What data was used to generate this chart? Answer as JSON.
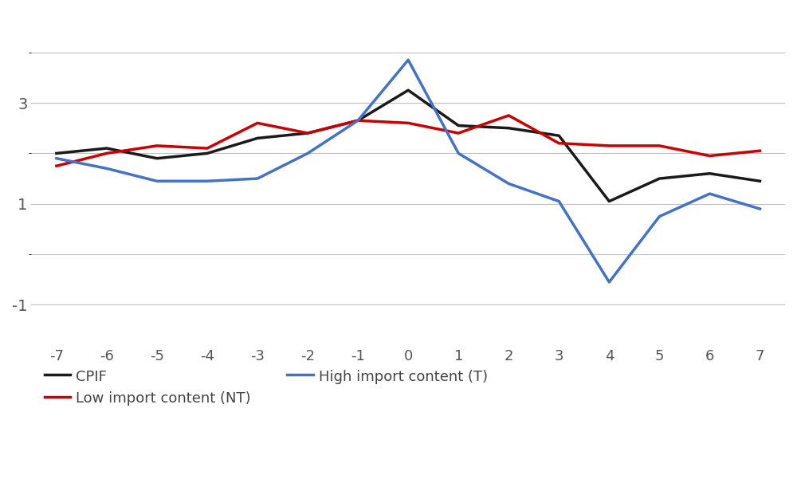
{
  "x": [
    -7,
    -6,
    -5,
    -4,
    -3,
    -2,
    -1,
    0,
    1,
    2,
    3,
    4,
    5,
    6,
    7
  ],
  "cpif": [
    2.0,
    2.1,
    1.9,
    2.0,
    2.3,
    2.4,
    2.65,
    3.25,
    2.55,
    2.5,
    2.35,
    1.05,
    1.5,
    1.6,
    1.45
  ],
  "low_import": [
    1.75,
    2.0,
    2.15,
    2.1,
    2.6,
    2.4,
    2.65,
    2.6,
    2.4,
    2.75,
    2.2,
    2.15,
    2.15,
    1.95,
    2.05
  ],
  "high_import": [
    1.9,
    1.7,
    1.45,
    1.45,
    1.5,
    2.0,
    2.65,
    3.85,
    2.0,
    1.4,
    1.05,
    -0.55,
    0.75,
    1.2,
    0.9
  ],
  "cpif_color": "#1a1a1a",
  "low_import_color": "#cc0000",
  "high_import_color": "#4472c4",
  "background_color": "#ffffff",
  "grid_color": "#c0c0c0",
  "line_width": 2.5,
  "yticks": [
    -1,
    1,
    3
  ],
  "ylim": [
    -1.8,
    4.8
  ],
  "xlim": [
    -7.5,
    7.5
  ],
  "legend_cpif": "CPIF",
  "legend_low": "Low import content (NT)",
  "legend_high": "High import content (T)"
}
